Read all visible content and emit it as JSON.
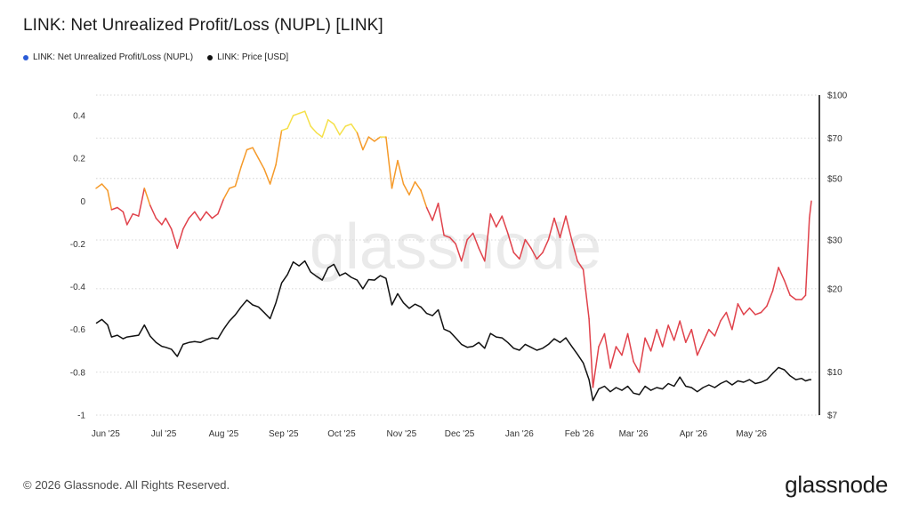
{
  "chart_data": {
    "type": "line",
    "title": "LINK: Net Unrealized Profit/Loss (NUPL) [LINK]",
    "watermark": "glassnode",
    "copyright": "© 2026 Glassnode. All Rights Reserved.",
    "brand": "glassnode",
    "x_tick_labels": [
      "Jun '25",
      "Jul '25",
      "Aug '25",
      "Sep '25",
      "Oct '25",
      "Nov '25",
      "Dec '25",
      "Jan '26",
      "Feb '26",
      "Mar '26",
      "Apr '26",
      "May '26"
    ],
    "y_left_ticks": [
      "0.4",
      "0.2",
      "0",
      "-0.2",
      "-0.4",
      "-0.6",
      "-0.8",
      "-1"
    ],
    "y_left_range": [
      -1,
      0.4
    ],
    "y_right_ticks": [
      "$100",
      "$70",
      "$50",
      "$30",
      "$20",
      "$10",
      "$7"
    ],
    "y_right_scale": "log",
    "y_right_range": [
      7,
      100
    ],
    "grid": "horizontal dotted",
    "legend_position": "top-left",
    "series": [
      {
        "name": "LINK: Net Unrealized Profit/Loss (NUPL)",
        "color": "#e0424b",
        "color_positive_low": "#f59a2a",
        "color_positive_high": "#f5e04a",
        "axis": "left",
        "points": [
          [
            "2025-05-27",
            0.06
          ],
          [
            "2025-05-30",
            0.08
          ],
          [
            "2025-06-02",
            0.05
          ],
          [
            "2025-06-04",
            -0.04
          ],
          [
            "2025-06-07",
            -0.03
          ],
          [
            "2025-06-10",
            -0.05
          ],
          [
            "2025-06-12",
            -0.11
          ],
          [
            "2025-06-15",
            -0.06
          ],
          [
            "2025-06-18",
            -0.07
          ],
          [
            "2025-06-21",
            0.06
          ],
          [
            "2025-06-24",
            -0.02
          ],
          [
            "2025-06-27",
            -0.08
          ],
          [
            "2025-06-30",
            -0.11
          ],
          [
            "2025-07-02",
            -0.08
          ],
          [
            "2025-07-05",
            -0.13
          ],
          [
            "2025-07-08",
            -0.22
          ],
          [
            "2025-07-11",
            -0.13
          ],
          [
            "2025-07-14",
            -0.08
          ],
          [
            "2025-07-17",
            -0.05
          ],
          [
            "2025-07-20",
            -0.09
          ],
          [
            "2025-07-23",
            -0.05
          ],
          [
            "2025-07-26",
            -0.08
          ],
          [
            "2025-07-29",
            -0.06
          ],
          [
            "2025-08-01",
            0.01
          ],
          [
            "2025-08-04",
            0.06
          ],
          [
            "2025-08-07",
            0.07
          ],
          [
            "2025-08-10",
            0.16
          ],
          [
            "2025-08-13",
            0.24
          ],
          [
            "2025-08-16",
            0.25
          ],
          [
            "2025-08-19",
            0.2
          ],
          [
            "2025-08-22",
            0.15
          ],
          [
            "2025-08-25",
            0.08
          ],
          [
            "2025-08-28",
            0.17
          ],
          [
            "2025-08-31",
            0.33
          ],
          [
            "2025-09-03",
            0.34
          ],
          [
            "2025-09-06",
            0.4
          ],
          [
            "2025-09-09",
            0.41
          ],
          [
            "2025-09-12",
            0.42
          ],
          [
            "2025-09-15",
            0.35
          ],
          [
            "2025-09-18",
            0.32
          ],
          [
            "2025-09-21",
            0.3
          ],
          [
            "2025-09-24",
            0.38
          ],
          [
            "2025-09-27",
            0.36
          ],
          [
            "2025-09-30",
            0.31
          ],
          [
            "2025-10-03",
            0.35
          ],
          [
            "2025-10-06",
            0.36
          ],
          [
            "2025-10-09",
            0.32
          ],
          [
            "2025-10-12",
            0.24
          ],
          [
            "2025-10-15",
            0.3
          ],
          [
            "2025-10-18",
            0.28
          ],
          [
            "2025-10-21",
            0.3
          ],
          [
            "2025-10-24",
            0.3
          ],
          [
            "2025-10-27",
            0.06
          ],
          [
            "2025-10-30",
            0.19
          ],
          [
            "2025-11-02",
            0.08
          ],
          [
            "2025-11-05",
            0.03
          ],
          [
            "2025-11-08",
            0.09
          ],
          [
            "2025-11-11",
            0.05
          ],
          [
            "2025-11-14",
            -0.03
          ],
          [
            "2025-11-17",
            -0.09
          ],
          [
            "2025-11-20",
            -0.01
          ],
          [
            "2025-11-23",
            -0.16
          ],
          [
            "2025-11-26",
            -0.17
          ],
          [
            "2025-11-29",
            -0.2
          ],
          [
            "2025-12-02",
            -0.28
          ],
          [
            "2025-12-05",
            -0.18
          ],
          [
            "2025-12-08",
            -0.15
          ],
          [
            "2025-12-11",
            -0.22
          ],
          [
            "2025-12-14",
            -0.28
          ],
          [
            "2025-12-17",
            -0.06
          ],
          [
            "2025-12-20",
            -0.12
          ],
          [
            "2025-12-23",
            -0.07
          ],
          [
            "2025-12-26",
            -0.15
          ],
          [
            "2025-12-29",
            -0.24
          ],
          [
            "2026-01-01",
            -0.27
          ],
          [
            "2026-01-04",
            -0.18
          ],
          [
            "2026-01-07",
            -0.22
          ],
          [
            "2026-01-10",
            -0.27
          ],
          [
            "2026-01-13",
            -0.24
          ],
          [
            "2026-01-16",
            -0.18
          ],
          [
            "2026-01-19",
            -0.08
          ],
          [
            "2026-01-22",
            -0.17
          ],
          [
            "2026-01-25",
            -0.07
          ],
          [
            "2026-01-28",
            -0.18
          ],
          [
            "2026-01-31",
            -0.28
          ],
          [
            "2026-02-03",
            -0.32
          ],
          [
            "2026-02-06",
            -0.55
          ],
          [
            "2026-02-08",
            -0.87
          ],
          [
            "2026-02-11",
            -0.68
          ],
          [
            "2026-02-14",
            -0.62
          ],
          [
            "2026-02-17",
            -0.78
          ],
          [
            "2026-02-20",
            -0.68
          ],
          [
            "2026-02-23",
            -0.72
          ],
          [
            "2026-02-26",
            -0.62
          ],
          [
            "2026-03-01",
            -0.75
          ],
          [
            "2026-03-04",
            -0.8
          ],
          [
            "2026-03-07",
            -0.64
          ],
          [
            "2026-03-10",
            -0.7
          ],
          [
            "2026-03-13",
            -0.6
          ],
          [
            "2026-03-16",
            -0.68
          ],
          [
            "2026-03-19",
            -0.58
          ],
          [
            "2026-03-22",
            -0.65
          ],
          [
            "2026-03-25",
            -0.56
          ],
          [
            "2026-03-28",
            -0.66
          ],
          [
            "2026-03-31",
            -0.6
          ],
          [
            "2026-04-03",
            -0.72
          ],
          [
            "2026-04-06",
            -0.66
          ],
          [
            "2026-04-09",
            -0.6
          ],
          [
            "2026-04-12",
            -0.63
          ],
          [
            "2026-04-15",
            -0.56
          ],
          [
            "2026-04-18",
            -0.52
          ],
          [
            "2026-04-21",
            -0.6
          ],
          [
            "2026-04-24",
            -0.48
          ],
          [
            "2026-04-27",
            -0.53
          ],
          [
            "2026-04-30",
            -0.5
          ],
          [
            "2026-05-03",
            -0.53
          ],
          [
            "2026-05-06",
            -0.52
          ],
          [
            "2026-05-09",
            -0.49
          ],
          [
            "2026-05-12",
            -0.42
          ],
          [
            "2026-05-15",
            -0.31
          ],
          [
            "2026-05-18",
            -0.37
          ],
          [
            "2026-05-21",
            -0.44
          ],
          [
            "2026-05-24",
            -0.46
          ],
          [
            "2026-05-27",
            -0.46
          ],
          [
            "2026-05-29",
            -0.44
          ],
          [
            "2026-05-31",
            -0.08
          ],
          [
            "2026-06-01",
            0.0
          ]
        ]
      },
      {
        "name": "LINK: Price [USD]",
        "color": "#111111",
        "axis": "right",
        "points": [
          [
            "2025-05-27",
            15.0
          ],
          [
            "2025-05-30",
            15.5
          ],
          [
            "2025-06-02",
            14.8
          ],
          [
            "2025-06-04",
            13.4
          ],
          [
            "2025-06-07",
            13.6
          ],
          [
            "2025-06-10",
            13.2
          ],
          [
            "2025-06-12",
            13.4
          ],
          [
            "2025-06-15",
            13.5
          ],
          [
            "2025-06-18",
            13.6
          ],
          [
            "2025-06-21",
            14.8
          ],
          [
            "2025-06-24",
            13.5
          ],
          [
            "2025-06-27",
            12.8
          ],
          [
            "2025-06-30",
            12.4
          ],
          [
            "2025-07-02",
            12.3
          ],
          [
            "2025-07-05",
            12.1
          ],
          [
            "2025-07-08",
            11.4
          ],
          [
            "2025-07-11",
            12.6
          ],
          [
            "2025-07-14",
            12.8
          ],
          [
            "2025-07-17",
            12.9
          ],
          [
            "2025-07-20",
            12.8
          ],
          [
            "2025-07-23",
            13.1
          ],
          [
            "2025-07-26",
            13.3
          ],
          [
            "2025-07-29",
            13.2
          ],
          [
            "2025-08-01",
            14.3
          ],
          [
            "2025-08-04",
            15.3
          ],
          [
            "2025-08-07",
            16.1
          ],
          [
            "2025-08-10",
            17.2
          ],
          [
            "2025-08-13",
            18.2
          ],
          [
            "2025-08-16",
            17.5
          ],
          [
            "2025-08-19",
            17.2
          ],
          [
            "2025-08-22",
            16.4
          ],
          [
            "2025-08-25",
            15.6
          ],
          [
            "2025-08-28",
            17.8
          ],
          [
            "2025-08-31",
            21.0
          ],
          [
            "2025-09-03",
            22.5
          ],
          [
            "2025-09-06",
            25.0
          ],
          [
            "2025-09-09",
            24.2
          ],
          [
            "2025-09-12",
            25.2
          ],
          [
            "2025-09-15",
            23.0
          ],
          [
            "2025-09-18",
            22.2
          ],
          [
            "2025-09-21",
            21.5
          ],
          [
            "2025-09-24",
            23.8
          ],
          [
            "2025-09-27",
            24.5
          ],
          [
            "2025-09-30",
            22.3
          ],
          [
            "2025-10-03",
            22.8
          ],
          [
            "2025-10-06",
            22.0
          ],
          [
            "2025-10-09",
            21.5
          ],
          [
            "2025-10-12",
            20.0
          ],
          [
            "2025-10-15",
            21.6
          ],
          [
            "2025-10-18",
            21.5
          ],
          [
            "2025-10-21",
            22.3
          ],
          [
            "2025-10-24",
            21.8
          ],
          [
            "2025-10-27",
            17.5
          ],
          [
            "2025-10-30",
            19.2
          ],
          [
            "2025-11-02",
            17.8
          ],
          [
            "2025-11-05",
            17.0
          ],
          [
            "2025-11-08",
            17.6
          ],
          [
            "2025-11-11",
            17.2
          ],
          [
            "2025-11-14",
            16.3
          ],
          [
            "2025-11-17",
            16.0
          ],
          [
            "2025-11-20",
            16.8
          ],
          [
            "2025-11-23",
            14.3
          ],
          [
            "2025-11-26",
            14.0
          ],
          [
            "2025-11-29",
            13.3
          ],
          [
            "2025-12-02",
            12.6
          ],
          [
            "2025-12-05",
            12.3
          ],
          [
            "2025-12-08",
            12.4
          ],
          [
            "2025-12-11",
            12.8
          ],
          [
            "2025-12-14",
            12.2
          ],
          [
            "2025-12-17",
            13.8
          ],
          [
            "2025-12-20",
            13.4
          ],
          [
            "2025-12-23",
            13.3
          ],
          [
            "2025-12-26",
            12.8
          ],
          [
            "2025-12-29",
            12.2
          ],
          [
            "2026-01-01",
            12.0
          ],
          [
            "2026-01-04",
            12.6
          ],
          [
            "2026-01-07",
            12.3
          ],
          [
            "2026-01-10",
            12.0
          ],
          [
            "2026-01-13",
            12.2
          ],
          [
            "2026-01-16",
            12.6
          ],
          [
            "2026-01-19",
            13.2
          ],
          [
            "2026-01-22",
            12.8
          ],
          [
            "2026-01-25",
            13.3
          ],
          [
            "2026-01-28",
            12.4
          ],
          [
            "2026-01-31",
            11.6
          ],
          [
            "2026-02-03",
            10.8
          ],
          [
            "2026-02-06",
            9.4
          ],
          [
            "2026-02-08",
            7.9
          ],
          [
            "2026-02-11",
            8.7
          ],
          [
            "2026-02-14",
            8.9
          ],
          [
            "2026-02-17",
            8.5
          ],
          [
            "2026-02-20",
            8.8
          ],
          [
            "2026-02-23",
            8.6
          ],
          [
            "2026-02-26",
            8.9
          ],
          [
            "2026-03-01",
            8.4
          ],
          [
            "2026-03-04",
            8.3
          ],
          [
            "2026-03-07",
            8.9
          ],
          [
            "2026-03-10",
            8.6
          ],
          [
            "2026-03-13",
            8.8
          ],
          [
            "2026-03-16",
            8.7
          ],
          [
            "2026-03-19",
            9.1
          ],
          [
            "2026-03-22",
            8.9
          ],
          [
            "2026-03-25",
            9.6
          ],
          [
            "2026-03-28",
            8.9
          ],
          [
            "2026-03-31",
            8.8
          ],
          [
            "2026-04-03",
            8.5
          ],
          [
            "2026-04-06",
            8.8
          ],
          [
            "2026-04-09",
            9.0
          ],
          [
            "2026-04-12",
            8.8
          ],
          [
            "2026-04-15",
            9.1
          ],
          [
            "2026-04-18",
            9.3
          ],
          [
            "2026-04-21",
            9.0
          ],
          [
            "2026-04-24",
            9.3
          ],
          [
            "2026-04-27",
            9.2
          ],
          [
            "2026-04-30",
            9.4
          ],
          [
            "2026-05-03",
            9.1
          ],
          [
            "2026-05-06",
            9.2
          ],
          [
            "2026-05-09",
            9.4
          ],
          [
            "2026-05-12",
            9.9
          ],
          [
            "2026-05-15",
            10.4
          ],
          [
            "2026-05-18",
            10.2
          ],
          [
            "2026-05-21",
            9.7
          ],
          [
            "2026-05-24",
            9.4
          ],
          [
            "2026-05-27",
            9.5
          ],
          [
            "2026-05-29",
            9.3
          ],
          [
            "2026-05-31",
            9.4
          ],
          [
            "2026-06-01",
            9.4
          ]
        ]
      }
    ]
  },
  "legend": {
    "nupl_label": "LINK: Net Unrealized Profit/Loss (NUPL)",
    "nupl_dot_color": "#2a5bd7",
    "price_label": "LINK: Price [USD]",
    "price_dot_color": "#111111"
  }
}
